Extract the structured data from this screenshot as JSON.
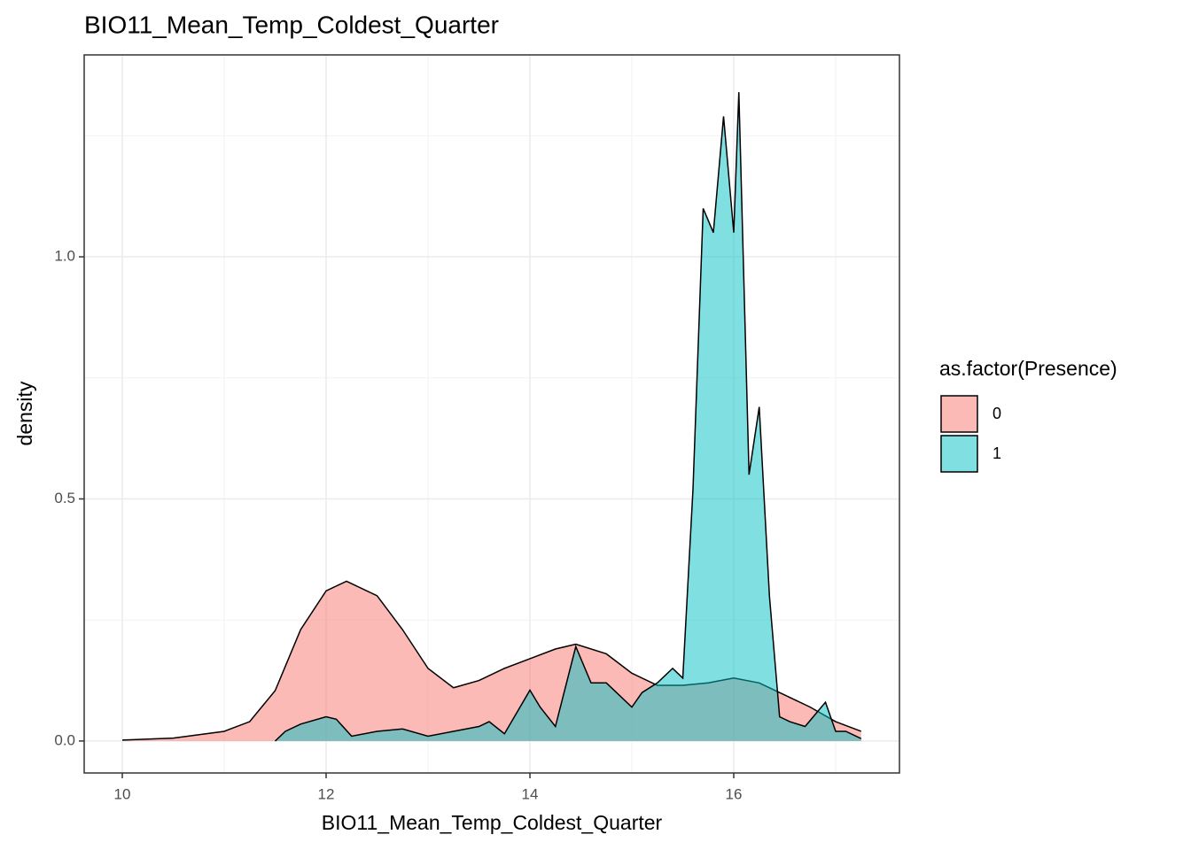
{
  "chart_data": {
    "type": "density",
    "title": "BIO11_Mean_Temp_Coldest_Quarter",
    "xlabel": "BIO11_Mean_Temp_Coldest_Quarter",
    "ylabel": "density",
    "legend_title": "as.factor(Presence)",
    "legend": "right",
    "grid": true,
    "xlim": [
      9.626,
      17.626
    ],
    "ylim": [
      -0.066,
      1.417
    ],
    "xticks": [
      10,
      12,
      14,
      16
    ],
    "yticks": [
      {
        "value": 0,
        "label": "0.0"
      },
      0.5,
      {
        "value": 1,
        "label": "1.0"
      }
    ],
    "xminor": [
      11,
      13,
      15,
      17
    ],
    "yminor": [
      0.25,
      0.75,
      1.25
    ],
    "series": [
      {
        "name": "0",
        "color": "#F8766D",
        "x": [
          10,
          10.5,
          11,
          11.25,
          11.5,
          11.75,
          12,
          12.2,
          12.5,
          12.75,
          13,
          13.25,
          13.5,
          13.75,
          14,
          14.25,
          14.45,
          14.75,
          15,
          15.25,
          15.5,
          15.75,
          16,
          16.25,
          16.5,
          16.75,
          17,
          17.25
        ],
        "values": [
          0.002,
          0.006,
          0.02,
          0.04,
          0.104,
          0.23,
          0.31,
          0.33,
          0.3,
          0.23,
          0.15,
          0.11,
          0.125,
          0.15,
          0.17,
          0.19,
          0.2,
          0.18,
          0.14,
          0.115,
          0.115,
          0.12,
          0.13,
          0.12,
          0.095,
          0.07,
          0.04,
          0.02
        ]
      },
      {
        "name": "1",
        "color": "#00BFC4",
        "x": [
          11.5,
          11.6,
          11.75,
          12,
          12.1,
          12.25,
          12.5,
          12.75,
          13,
          13.25,
          13.5,
          13.6,
          13.75,
          14,
          14.1,
          14.25,
          14.45,
          14.6,
          14.75,
          15,
          15.1,
          15.25,
          15.4,
          15.5,
          15.6,
          15.7,
          15.8,
          15.9,
          16,
          16.05,
          16.15,
          16.25,
          16.35,
          16.45,
          16.55,
          16.7,
          16.9,
          17,
          17.1,
          17.25
        ],
        "values": [
          0,
          0.02,
          0.035,
          0.05,
          0.045,
          0.01,
          0.02,
          0.025,
          0.01,
          0.02,
          0.03,
          0.04,
          0.015,
          0.105,
          0.07,
          0.03,
          0.195,
          0.12,
          0.12,
          0.07,
          0.1,
          0.12,
          0.15,
          0.13,
          0.52,
          1.1,
          1.05,
          1.29,
          1.05,
          1.34,
          0.55,
          0.69,
          0.3,
          0.05,
          0.04,
          0.03,
          0.08,
          0.02,
          0.02,
          0.005
        ]
      }
    ]
  }
}
